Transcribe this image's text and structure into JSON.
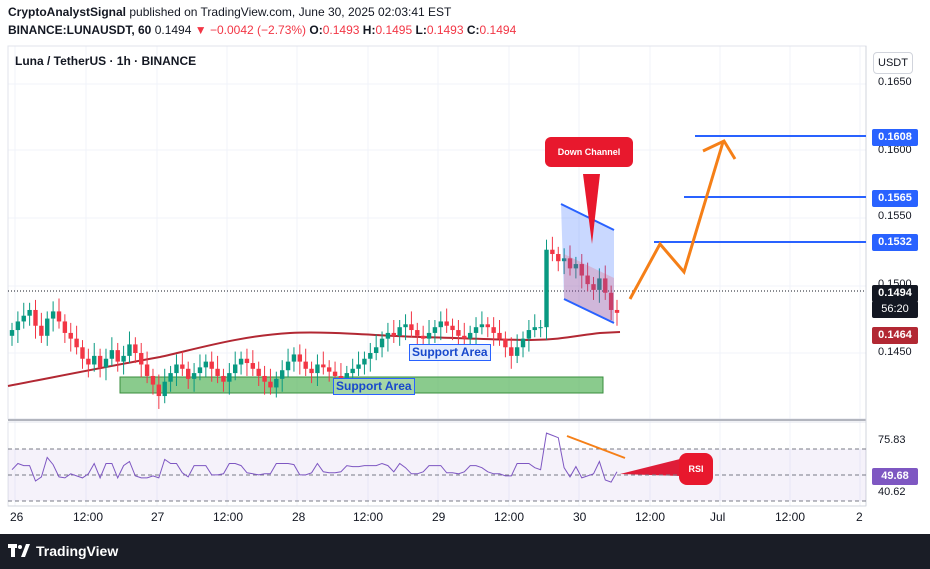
{
  "header": {
    "author": "CryptoAnalystSignal",
    "published_text": "published on TradingView.com, June 30, 2025 02:03:41 EST",
    "symbol_line": "BINANCE:LUNAUSDT, 60",
    "last": "0.1494",
    "change": "−0.0042 (−2.73%)",
    "o_label": "O:",
    "o": "0.1493",
    "h_label": "H:",
    "h": "0.1495",
    "l_label": "L:",
    "l": "0.1493",
    "c_label": "C:",
    "c": "0.1494"
  },
  "chart": {
    "symbol_label": "Luna / TetherUS · 1h · BINANCE",
    "currency": "USDT",
    "price_ticks": [
      "0.1650",
      "0.1600",
      "0.1550",
      "0.1500",
      "0.1450"
    ],
    "rsi_ticks": [
      "75.83",
      "40.62"
    ],
    "price_tags": {
      "t1608": "0.1608",
      "t1565": "0.1565",
      "t1532": "0.1532",
      "last": "0.1494",
      "countdown": "56:20",
      "ma": "0.1464",
      "rsi": "49.68"
    },
    "annotations": {
      "support_1": "Support Area",
      "support_2": "Support Area",
      "down_channel": "Down Channel",
      "rsi": "RSI"
    },
    "time_labels": [
      "26",
      "12:00",
      "27",
      "12:00",
      "28",
      "12:00",
      "29",
      "12:00",
      "30",
      "12:00",
      "Jul",
      "12:00",
      "2"
    ],
    "colors": {
      "up": "#089981",
      "down": "#f23645",
      "blue": "#2962ff",
      "orange": "#f57f17",
      "ma": "#b22833",
      "rsi": "#7e57c2"
    }
  },
  "chart_data": {
    "type": "candlestick",
    "symbol": "LUNAUSDT",
    "interval": "60",
    "y_range": [
      0.142,
      0.168
    ],
    "levels": [
      0.1608,
      0.1565,
      0.1532
    ],
    "last_price": 0.1494,
    "ma_value": 0.1464,
    "rsi_value": 49.68,
    "rsi_levels": [
      75.83,
      40.62
    ],
    "closes": [
      0.1482,
      0.1488,
      0.1492,
      0.1496,
      0.1485,
      0.1478,
      0.149,
      0.1495,
      0.1488,
      0.148,
      0.1476,
      0.147,
      0.1462,
      0.1458,
      0.1464,
      0.1456,
      0.1462,
      0.1468,
      0.146,
      0.1464,
      0.1472,
      0.1466,
      0.1458,
      0.145,
      0.1444,
      0.1436,
      0.1446,
      0.1452,
      0.1458,
      0.1455,
      0.1448,
      0.1452,
      0.1456,
      0.146,
      0.1455,
      0.145,
      0.1446,
      0.1452,
      0.1458,
      0.1462,
      0.1459,
      0.1455,
      0.145,
      0.1446,
      0.1442,
      0.1448,
      0.1454,
      0.146,
      0.1465,
      0.146,
      0.1455,
      0.1452,
      0.1458,
      0.1456,
      0.1453,
      0.145,
      0.1448,
      0.1452,
      0.1455,
      0.1458,
      0.1462,
      0.1466,
      0.147,
      0.1476,
      0.148,
      0.1478,
      0.1484,
      0.1486,
      0.1482,
      0.1478,
      0.1476,
      0.148,
      0.1484,
      0.1488,
      0.1485,
      0.1482,
      0.1478,
      0.1476,
      0.148,
      0.1484,
      0.1486,
      0.1484,
      0.148,
      0.1476,
      0.147,
      0.1464,
      0.147,
      0.1476,
      0.1482,
      0.1484,
      0.1484,
      0.1538,
      0.1535,
      0.153,
      0.1532,
      0.1525,
      0.1528,
      0.152,
      0.1514,
      0.151,
      0.1518,
      0.1508,
      0.1496,
      0.1494
    ]
  }
}
